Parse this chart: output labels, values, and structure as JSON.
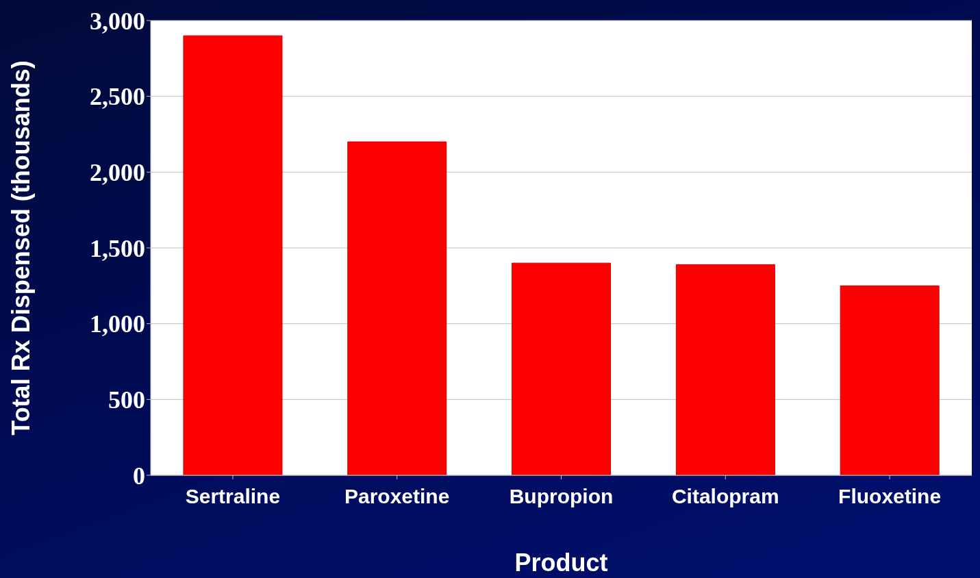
{
  "chart_data": {
    "type": "bar",
    "xlabel": "Product",
    "ylabel": "Total Rx Dispensed (thousands)",
    "categories": [
      "Sertraline",
      "Paroxetine",
      "Bupropion",
      "Citalopram",
      "Fluoxetine"
    ],
    "values": [
      2900,
      2200,
      1400,
      1390,
      1250
    ],
    "color": "#ff0000",
    "ylim": [
      0,
      3000
    ],
    "yticks": [
      {
        "value": 0,
        "label": "0"
      },
      {
        "value": 500,
        "label": "500"
      },
      {
        "value": 1000,
        "label": "1,000"
      },
      {
        "value": 1500,
        "label": "1,500"
      },
      {
        "value": 2000,
        "label": "2,000"
      },
      {
        "value": 2500,
        "label": "2,500"
      },
      {
        "value": 3000,
        "label": "3,000"
      }
    ],
    "grid": "y"
  }
}
